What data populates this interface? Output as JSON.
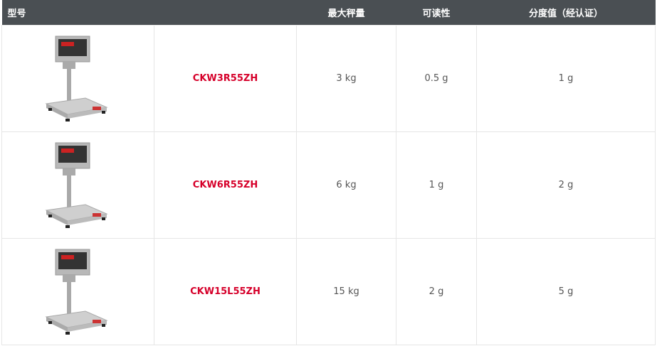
{
  "headers": [
    "型号",
    "最大秤量",
    "可读性",
    "分度值（经认证）"
  ],
  "rows": [
    {
      "image": "scale-image",
      "model": "CKW3R55ZH",
      "capacity": "3 kg",
      "readability": "0.5 g",
      "division": "1 g"
    },
    {
      "image": "scale-image",
      "model": "CKW6R55ZH",
      "capacity": "6 kg",
      "readability": "1 g",
      "division": "2 g"
    },
    {
      "image": "scale-image",
      "model": "CKW15L55ZH",
      "capacity": "15 kg",
      "readability": "2 g",
      "division": "5 g"
    }
  ],
  "colors": {
    "header_bg": "#4a4f53",
    "model_text": "#d6002a"
  }
}
